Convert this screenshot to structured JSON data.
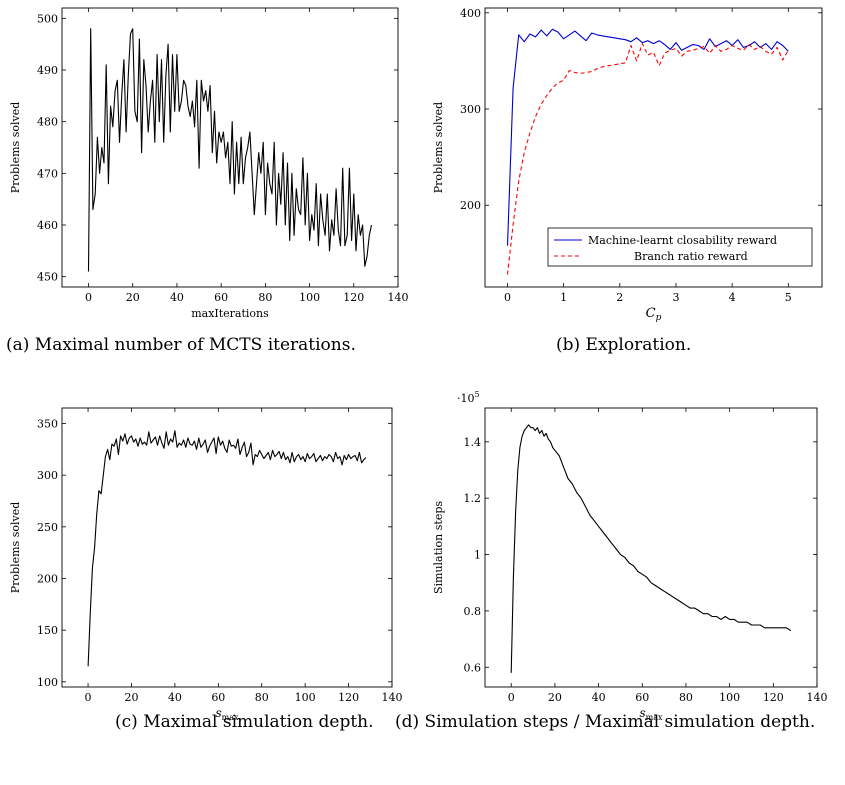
{
  "captions": {
    "a": "(a) Maximal number of MCTS iterations.",
    "b": "(b) Exploration.",
    "c": "(c) Maximal simulation depth.",
    "d": "(d) Simulation steps / Maximal simulation depth."
  },
  "chart_data": [
    {
      "id": "a",
      "type": "line",
      "xlabel": "maxIterations",
      "ylabel": "Problems solved",
      "xlim": [
        -12,
        140
      ],
      "ylim": [
        448,
        502
      ],
      "xticks": [
        0,
        20,
        40,
        60,
        80,
        100,
        120,
        140
      ],
      "yticks": [
        450,
        460,
        470,
        480,
        490,
        500
      ],
      "series": [
        {
          "color": "#000000",
          "x": [
            0,
            1,
            2,
            3,
            4,
            5,
            6,
            7,
            8,
            9,
            10,
            11,
            12,
            13,
            14,
            15,
            16,
            17,
            18,
            19,
            20,
            21,
            22,
            23,
            24,
            25,
            26,
            27,
            28,
            29,
            30,
            31,
            32,
            33,
            34,
            35,
            36,
            37,
            38,
            39,
            40,
            41,
            42,
            43,
            44,
            45,
            46,
            47,
            48,
            49,
            50,
            51,
            52,
            53,
            54,
            55,
            56,
            57,
            58,
            59,
            60,
            61,
            62,
            63,
            64,
            65,
            66,
            67,
            68,
            69,
            70,
            71,
            72,
            73,
            74,
            75,
            76,
            77,
            78,
            79,
            80,
            81,
            82,
            83,
            84,
            85,
            86,
            87,
            88,
            89,
            90,
            91,
            92,
            93,
            94,
            95,
            96,
            97,
            98,
            99,
            100,
            101,
            102,
            103,
            104,
            105,
            106,
            107,
            108,
            109,
            110,
            111,
            112,
            113,
            114,
            115,
            116,
            117,
            118,
            119,
            120,
            121,
            122,
            123,
            124,
            125,
            126,
            127,
            128
          ],
          "y": [
            451,
            498,
            463,
            466,
            477,
            470,
            475,
            472,
            491,
            468,
            483,
            479,
            486,
            488,
            476,
            485,
            492,
            478,
            489,
            497,
            498,
            482,
            480,
            496,
            474,
            492,
            487,
            478,
            484,
            488,
            476,
            493,
            480,
            492,
            476,
            489,
            495,
            478,
            493,
            482,
            493,
            482,
            484,
            488,
            487,
            483,
            481,
            484,
            479,
            488,
            471,
            488,
            484,
            486,
            482,
            487,
            474,
            482,
            472,
            478,
            476,
            478,
            473,
            476,
            468,
            480,
            466,
            476,
            468,
            477,
            468,
            473,
            475,
            478,
            470,
            462,
            468,
            474,
            470,
            476,
            462,
            472,
            468,
            466,
            476,
            460,
            470,
            464,
            474,
            460,
            472,
            457,
            470,
            458,
            467,
            463,
            462,
            473,
            460,
            470,
            457,
            462,
            459,
            468,
            456,
            466,
            461,
            458,
            466,
            455,
            461,
            458,
            467,
            459,
            456,
            471,
            456,
            458,
            471,
            457,
            466,
            455,
            462,
            458,
            460,
            452,
            454,
            458,
            460
          ]
        }
      ]
    },
    {
      "id": "b",
      "type": "line",
      "xlabel": "C_p",
      "ylabel": "Problems solved",
      "xlim": [
        -0.4,
        5.6
      ],
      "ylim": [
        115,
        405
      ],
      "xticks": [
        0,
        1,
        2,
        3,
        4,
        5
      ],
      "yticks": [
        200,
        300,
        400
      ],
      "legend": "bottom-right",
      "series": [
        {
          "name": "Machine-learnt closability reward",
          "color": "#0000cc",
          "dash": "solid",
          "x": [
            0,
            0.1,
            0.2,
            0.3,
            0.4,
            0.5,
            0.6,
            0.7,
            0.8,
            0.9,
            1.0,
            1.1,
            1.2,
            1.3,
            1.4,
            1.5,
            1.6,
            1.7,
            1.8,
            1.9,
            2.0,
            2.1,
            2.2,
            2.3,
            2.4,
            2.5,
            2.6,
            2.7,
            2.8,
            2.9,
            3.0,
            3.1,
            3.2,
            3.3,
            3.4,
            3.5,
            3.6,
            3.7,
            3.8,
            3.9,
            4.0,
            4.1,
            4.2,
            4.3,
            4.4,
            4.5,
            4.6,
            4.7,
            4.8,
            4.9,
            5.0
          ],
          "y": [
            158,
            322,
            377,
            370,
            378,
            375,
            382,
            376,
            383,
            380,
            373,
            377,
            381,
            376,
            371,
            379,
            377,
            376,
            375,
            374,
            373,
            372,
            370,
            374,
            369,
            371,
            368,
            371,
            367,
            362,
            369,
            361,
            364,
            367,
            366,
            362,
            373,
            365,
            368,
            371,
            366,
            372,
            364,
            366,
            370,
            364,
            368,
            362,
            370,
            366,
            360
          ]
        },
        {
          "name": "Branch ratio reward",
          "color": "#ff0000",
          "dash": "dashed",
          "x": [
            0,
            0.1,
            0.2,
            0.3,
            0.4,
            0.5,
            0.6,
            0.7,
            0.8,
            0.9,
            1.0,
            1.1,
            1.2,
            1.3,
            1.4,
            1.5,
            1.6,
            1.7,
            1.8,
            1.9,
            2.0,
            2.1,
            2.2,
            2.3,
            2.4,
            2.5,
            2.6,
            2.7,
            2.8,
            2.9,
            3.0,
            3.1,
            3.2,
            3.3,
            3.4,
            3.5,
            3.6,
            3.7,
            3.8,
            3.9,
            4.0,
            4.1,
            4.2,
            4.3,
            4.4,
            4.5,
            4.6,
            4.7,
            4.8,
            4.9,
            5.0
          ],
          "y": [
            128,
            180,
            225,
            255,
            275,
            292,
            305,
            314,
            322,
            327,
            330,
            340,
            338,
            337,
            338,
            339,
            342,
            344,
            345,
            346,
            347,
            348,
            366,
            350,
            368,
            356,
            359,
            345,
            358,
            361,
            363,
            355,
            360,
            361,
            363,
            365,
            358,
            366,
            360,
            362,
            366,
            363,
            361,
            367,
            362,
            365,
            360,
            357,
            364,
            351,
            361
          ]
        }
      ]
    },
    {
      "id": "c",
      "type": "line",
      "xlabel": "s_max",
      "ylabel": "Problems solved",
      "xlim": [
        -12,
        140
      ],
      "ylim": [
        95,
        365
      ],
      "xticks": [
        0,
        20,
        40,
        60,
        80,
        100,
        120,
        140
      ],
      "yticks": [
        100,
        150,
        200,
        250,
        300,
        350
      ],
      "series": [
        {
          "color": "#000000",
          "x": [
            0,
            1,
            2,
            3,
            4,
            5,
            6,
            7,
            8,
            9,
            10,
            11,
            12,
            13,
            14,
            15,
            16,
            17,
            18,
            19,
            20,
            21,
            22,
            23,
            24,
            25,
            26,
            27,
            28,
            29,
            30,
            31,
            32,
            33,
            34,
            35,
            36,
            37,
            38,
            39,
            40,
            41,
            42,
            43,
            44,
            45,
            46,
            47,
            48,
            49,
            50,
            51,
            52,
            53,
            54,
            55,
            56,
            57,
            58,
            59,
            60,
            61,
            62,
            63,
            64,
            65,
            66,
            67,
            68,
            69,
            70,
            71,
            72,
            73,
            74,
            75,
            76,
            77,
            78,
            79,
            80,
            81,
            82,
            83,
            84,
            85,
            86,
            87,
            88,
            89,
            90,
            91,
            92,
            93,
            94,
            95,
            96,
            97,
            98,
            99,
            100,
            101,
            102,
            103,
            104,
            105,
            106,
            107,
            108,
            109,
            110,
            111,
            112,
            113,
            114,
            115,
            116,
            117,
            118,
            119,
            120,
            121,
            122,
            123,
            124,
            125,
            126,
            127,
            128
          ],
          "y": [
            115,
            165,
            210,
            230,
            262,
            285,
            282,
            300,
            318,
            325,
            315,
            330,
            328,
            335,
            320,
            338,
            333,
            340,
            330,
            336,
            338,
            332,
            335,
            328,
            336,
            330,
            332,
            329,
            342,
            331,
            334,
            337,
            329,
            338,
            331,
            326,
            342,
            329,
            335,
            332,
            343,
            327,
            331,
            329,
            334,
            327,
            336,
            330,
            329,
            333,
            325,
            336,
            327,
            330,
            334,
            322,
            328,
            332,
            336,
            321,
            337,
            329,
            333,
            326,
            322,
            334,
            328,
            329,
            326,
            335,
            320,
            327,
            332,
            318,
            322,
            331,
            310,
            320,
            318,
            324,
            320,
            316,
            319,
            322,
            315,
            324,
            318,
            320,
            323,
            316,
            322,
            315,
            318,
            312,
            322,
            313,
            318,
            320,
            315,
            318,
            313,
            321,
            316,
            318,
            321,
            313,
            316,
            319,
            314,
            318,
            316,
            320,
            318,
            313,
            322,
            316,
            318,
            310,
            319,
            315,
            320,
            316,
            318,
            319,
            314,
            322,
            312,
            315,
            317
          ]
        }
      ]
    },
    {
      "id": "d",
      "type": "line",
      "xlabel": "s_max",
      "ylabel": "Simulation steps",
      "scale_note": "·10^5",
      "xlim": [
        -12,
        140
      ],
      "ylim": [
        0.53,
        1.52
      ],
      "xticks": [
        0,
        20,
        40,
        60,
        80,
        100,
        120,
        140
      ],
      "yticks": [
        0.6,
        0.8,
        1,
        1.2,
        1.4
      ],
      "ytick_labels": [
        "0.6",
        "0.8",
        "1",
        "1.2",
        "1.4"
      ],
      "series": [
        {
          "color": "#000000",
          "x": [
            0,
            1,
            2,
            3,
            4,
            5,
            6,
            7,
            8,
            9,
            10,
            11,
            12,
            13,
            14,
            15,
            16,
            17,
            18,
            19,
            20,
            22,
            24,
            26,
            28,
            30,
            32,
            34,
            36,
            38,
            40,
            42,
            44,
            46,
            48,
            50,
            52,
            54,
            56,
            58,
            60,
            62,
            64,
            66,
            68,
            70,
            72,
            74,
            76,
            78,
            80,
            82,
            84,
            86,
            88,
            90,
            92,
            94,
            96,
            98,
            100,
            102,
            104,
            106,
            108,
            110,
            112,
            114,
            116,
            118,
            120,
            122,
            124,
            126,
            128
          ],
          "y": [
            0.58,
            0.92,
            1.15,
            1.3,
            1.38,
            1.42,
            1.44,
            1.45,
            1.46,
            1.45,
            1.45,
            1.44,
            1.45,
            1.43,
            1.44,
            1.42,
            1.43,
            1.41,
            1.4,
            1.38,
            1.37,
            1.35,
            1.31,
            1.27,
            1.25,
            1.22,
            1.2,
            1.17,
            1.14,
            1.12,
            1.1,
            1.08,
            1.06,
            1.04,
            1.02,
            1.0,
            0.99,
            0.97,
            0.96,
            0.94,
            0.93,
            0.92,
            0.9,
            0.89,
            0.88,
            0.87,
            0.86,
            0.85,
            0.84,
            0.83,
            0.82,
            0.81,
            0.81,
            0.8,
            0.79,
            0.79,
            0.78,
            0.78,
            0.77,
            0.78,
            0.77,
            0.77,
            0.76,
            0.76,
            0.76,
            0.75,
            0.75,
            0.75,
            0.74,
            0.74,
            0.74,
            0.74,
            0.74,
            0.74,
            0.73
          ]
        }
      ]
    }
  ]
}
